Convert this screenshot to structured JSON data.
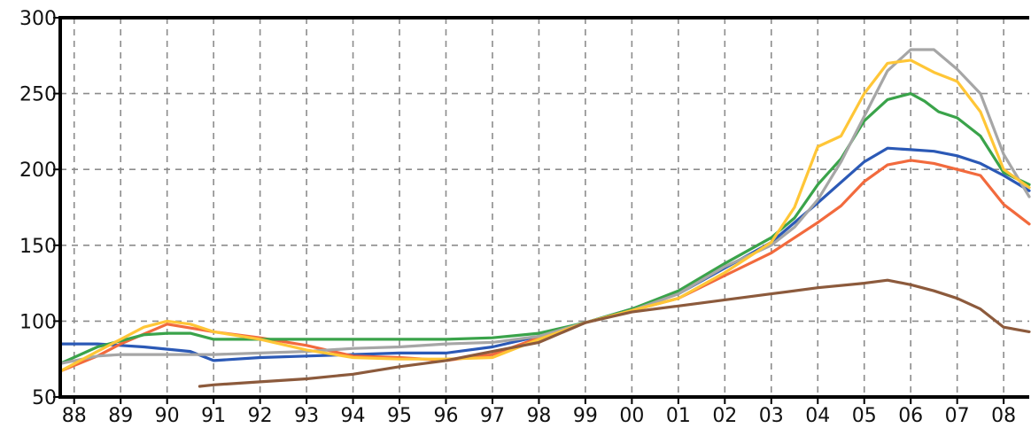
{
  "chart_data": {
    "type": "line",
    "title": "",
    "xlabel": "",
    "ylabel": "",
    "xlim": [
      1987.7,
      2008.55
    ],
    "ylim": [
      50,
      300
    ],
    "grid": true,
    "x_tick_values": [
      1988,
      1989,
      1990,
      1991,
      1992,
      1993,
      1994,
      1995,
      1996,
      1997,
      1998,
      1999,
      2000,
      2001,
      2002,
      2003,
      2004,
      2005,
      2006,
      2007,
      2008
    ],
    "x_tick_labels": [
      "88",
      "89",
      "90",
      "91",
      "92",
      "93",
      "94",
      "95",
      "96",
      "97",
      "98",
      "99",
      "00",
      "01",
      "02",
      "03",
      "04",
      "05",
      "06",
      "07",
      "08"
    ],
    "y_tick_values": [
      50,
      100,
      150,
      200,
      250,
      300
    ],
    "y_tick_labels": [
      "50",
      "100",
      "150",
      "200",
      "250",
      "300"
    ],
    "series": [
      {
        "color": "#2b59b6",
        "x": [
          1987.7,
          1988.5,
          1989.5,
          1990.5,
          1991.0,
          1992.0,
          1993.0,
          1994.0,
          1995.0,
          1996.0,
          1997.0,
          1998.0,
          1999.0,
          2000.0,
          2001.0,
          2002.0,
          2003.0,
          2004.0,
          2005.0,
          2005.5,
          2006.0,
          2006.5,
          2007.0,
          2007.5,
          2008.0,
          2008.55
        ],
        "y": [
          85,
          85,
          83,
          80,
          74,
          76,
          77,
          78,
          79,
          79,
          83,
          90,
          99,
          108,
          118,
          135,
          152,
          178,
          205,
          214,
          213,
          212,
          209,
          204,
          196,
          186
        ]
      },
      {
        "color": "#f26a3d",
        "x": [
          1987.7,
          1988.5,
          1989.0,
          1990.0,
          1991.0,
          1992.0,
          1993.0,
          1994.0,
          1995.0,
          1996.0,
          1997.0,
          1998.0,
          1999.0,
          2000.0,
          2001.0,
          2002.0,
          2003.0,
          2004.0,
          2004.5,
          2005.0,
          2005.5,
          2006.0,
          2006.5,
          2007.0,
          2007.5,
          2008.0,
          2008.55
        ],
        "y": [
          67,
          77,
          85,
          98,
          93,
          89,
          84,
          77,
          76,
          74,
          78,
          89,
          99,
          107,
          115,
          130,
          145,
          165,
          176,
          192,
          203,
          206,
          204,
          200,
          196,
          177,
          164
        ]
      },
      {
        "color": "#3aa34a",
        "x": [
          1987.7,
          1988.5,
          1989.5,
          1990.0,
          1990.5,
          1991.0,
          1992.0,
          1993.0,
          1994.0,
          1995.0,
          1996.0,
          1997.0,
          1998.0,
          1999.0,
          2000.0,
          2001.0,
          2002.0,
          2003.0,
          2003.5,
          2004.0,
          2004.5,
          2005.0,
          2005.5,
          2006.0,
          2006.3,
          2006.6,
          2007.0,
          2007.5,
          2008.0,
          2008.55
        ],
        "y": [
          72,
          83,
          91,
          92,
          92,
          88,
          88,
          88,
          88,
          88,
          88,
          89,
          92,
          99,
          108,
          120,
          138,
          155,
          168,
          190,
          207,
          232,
          246,
          250,
          245,
          238,
          234,
          222,
          198,
          190
        ]
      },
      {
        "color": "#a6a6a6",
        "x": [
          1987.7,
          1988.5,
          1989.0,
          1990.0,
          1991.0,
          1992.0,
          1993.0,
          1994.0,
          1995.0,
          1996.0,
          1997.0,
          1998.0,
          1999.0,
          2000.0,
          2001.0,
          2002.0,
          2003.0,
          2003.5,
          2004.0,
          2004.5,
          2005.0,
          2005.5,
          2006.0,
          2006.5,
          2007.0,
          2007.5,
          2008.0,
          2008.55
        ],
        "y": [
          72,
          77,
          78,
          78,
          78,
          79,
          80,
          82,
          83,
          85,
          86,
          90,
          99,
          107,
          118,
          136,
          150,
          162,
          180,
          205,
          235,
          265,
          279,
          279,
          266,
          250,
          210,
          182
        ]
      },
      {
        "color": "#ffc637",
        "x": [
          1987.7,
          1988.5,
          1989.0,
          1989.5,
          1990.0,
          1990.5,
          1991.0,
          1992.0,
          1993.0,
          1994.0,
          1995.0,
          1996.0,
          1997.0,
          1998.0,
          1999.0,
          2000.0,
          2001.0,
          2002.0,
          2003.0,
          2003.5,
          2004.0,
          2004.5,
          2005.0,
          2005.5,
          2006.0,
          2006.5,
          2007.0,
          2007.5,
          2008.0,
          2008.55
        ],
        "y": [
          67,
          80,
          88,
          96,
          100,
          98,
          93,
          88,
          81,
          76,
          75,
          75,
          76,
          88,
          99,
          107,
          115,
          132,
          152,
          175,
          215,
          222,
          250,
          270,
          272,
          264,
          258,
          238,
          200,
          188
        ]
      },
      {
        "color": "#8c5a3c",
        "x": [
          1990.7,
          1991.0,
          1992.0,
          1993.0,
          1994.0,
          1995.0,
          1996.0,
          1997.0,
          1998.0,
          1999.0,
          2000.0,
          2001.0,
          2002.0,
          2003.0,
          2004.0,
          2005.0,
          2005.5,
          2006.0,
          2006.5,
          2007.0,
          2007.5,
          2008.0,
          2008.55
        ],
        "y": [
          57,
          58,
          60,
          62,
          65,
          70,
          74,
          80,
          86,
          99,
          106,
          110,
          114,
          118,
          122,
          125,
          127,
          124,
          120,
          115,
          108,
          96,
          93
        ]
      }
    ]
  }
}
